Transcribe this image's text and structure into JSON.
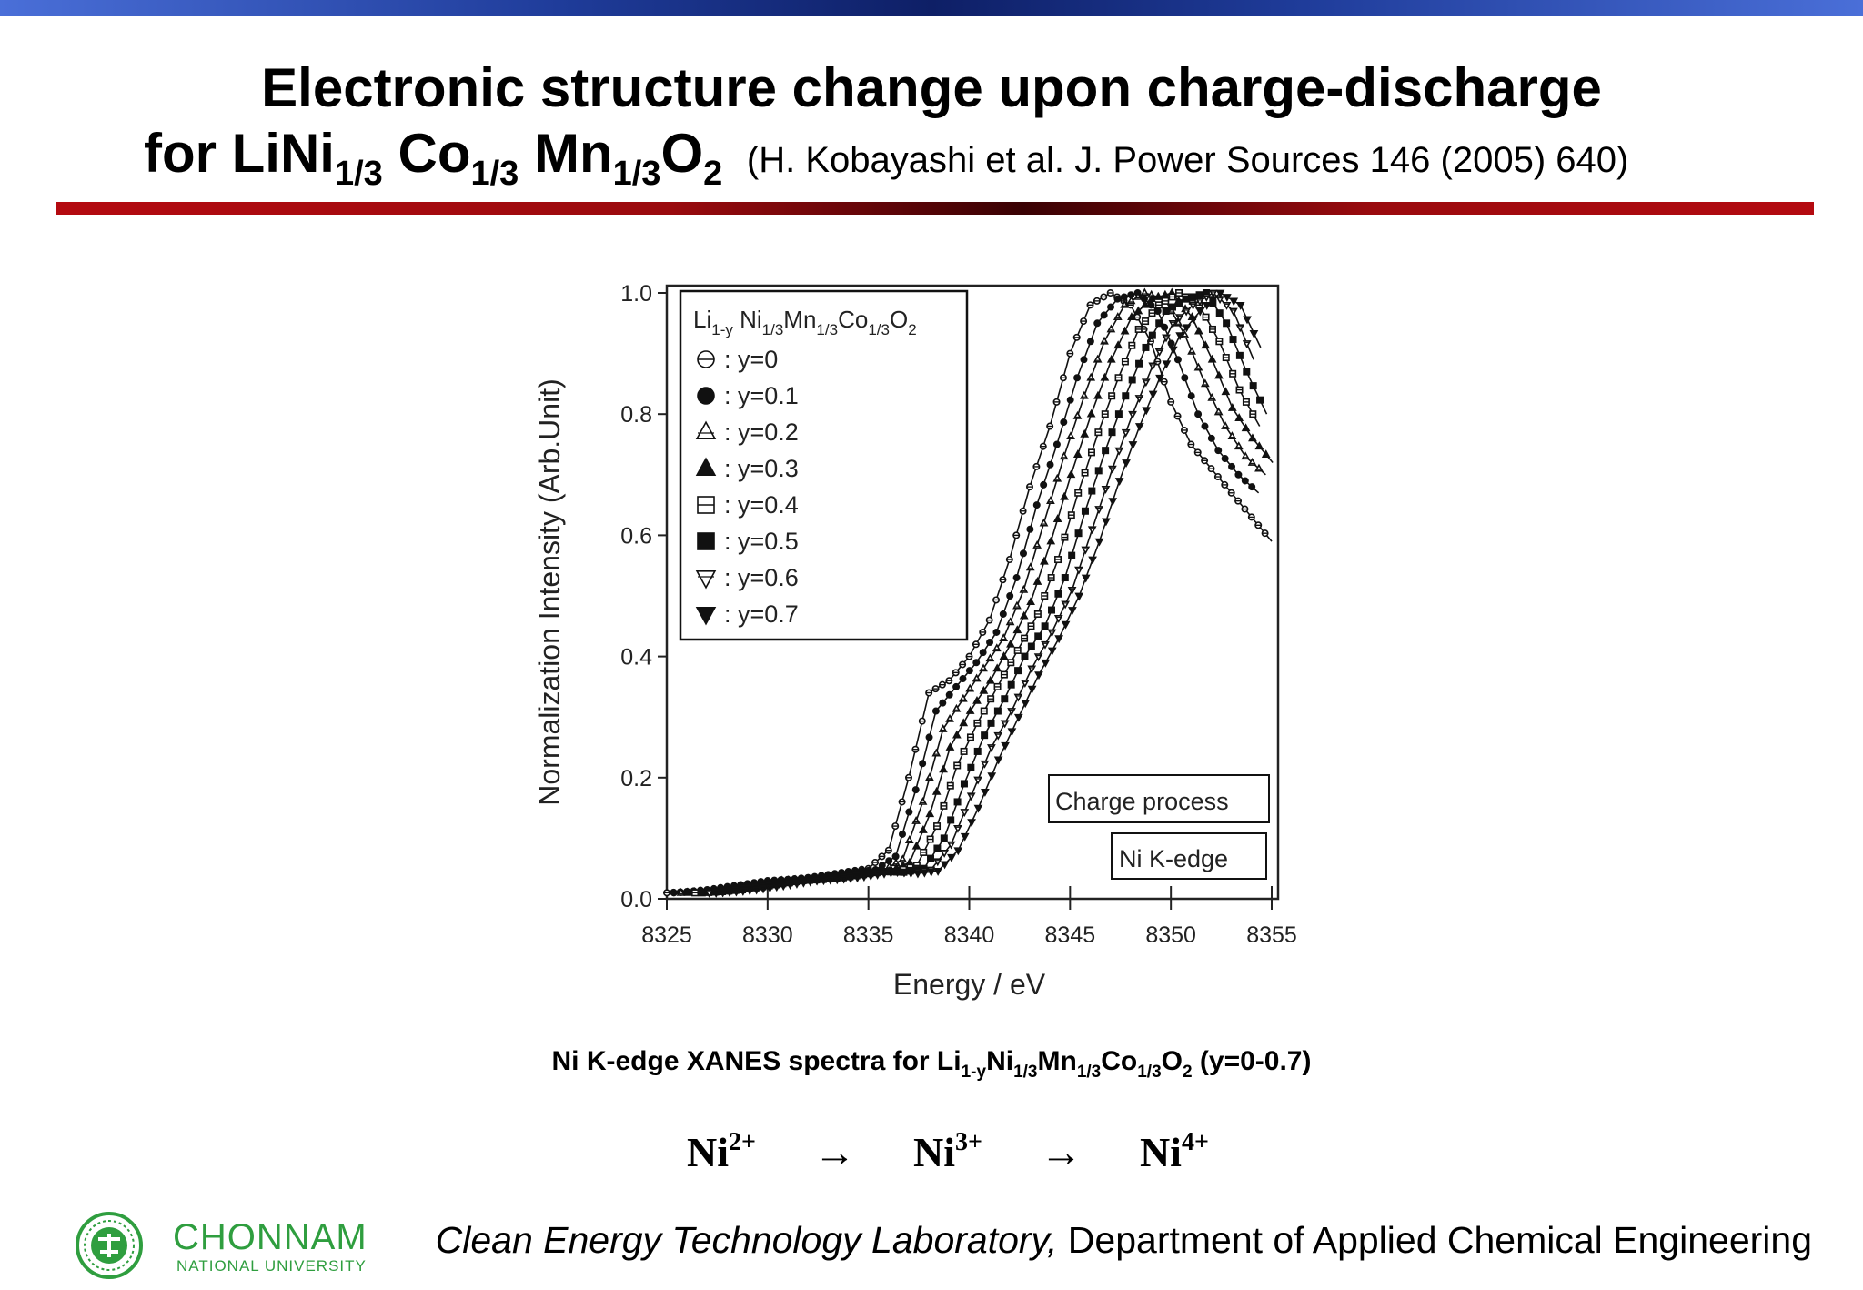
{
  "slide": {
    "title_line1": "Electronic structure change upon charge-discharge",
    "title_line2": {
      "parts": [
        "for LiNi",
        "1/3",
        " Co",
        "1/3",
        " Mn",
        "1/3",
        "O",
        "2"
      ],
      "reference": "(H. Kobayashi et al. J. Power Sources 146 (2005) 640)"
    },
    "caption": {
      "parts": [
        "Ni K-edge XANES spectra for Li",
        "1-y",
        "Ni",
        "1/3",
        "Mn",
        "1/3",
        "Co",
        "1/3",
        "O",
        "2",
        " (y=0-0.7)"
      ]
    },
    "oxidation": {
      "ions": [
        {
          "symbol": "Ni",
          "charge": "2+"
        },
        {
          "symbol": "Ni",
          "charge": "3+"
        },
        {
          "symbol": "Ni",
          "charge": "4+"
        }
      ],
      "arrow": "→"
    },
    "footer": {
      "university": "CHONNAM",
      "university_sub": "NATIONAL UNIVERSITY",
      "lab_italic": "Clean Energy Technology Laboratory,",
      "lab_rest": " Department of Applied Chemical Engineering"
    },
    "colors": {
      "top_bar": "#1f3c9a",
      "red_rule": "#b40a10",
      "logo_green": "#2f9e3f"
    }
  },
  "chart_data": {
    "type": "line",
    "xlabel": "Energy / eV",
    "ylabel": "Normalization Intensity (Arb.Unit)",
    "xlim": [
      8325,
      8355
    ],
    "ylim": [
      0.0,
      1.0
    ],
    "xticks": [
      "8325",
      "8330",
      "8335",
      "8340",
      "8345",
      "8350",
      "8355"
    ],
    "yticks": [
      "0.0",
      "0.2",
      "0.4",
      "0.6",
      "0.8",
      "1.0"
    ],
    "legend": {
      "title_parts": [
        "Li",
        "1-y",
        " Ni",
        "1/3",
        "Mn",
        "1/3",
        "Co",
        "1/3",
        "O",
        "2"
      ],
      "position": "top-left"
    },
    "annotations": [
      "Charge process",
      "Ni K-edge"
    ],
    "grid": false,
    "series": [
      {
        "name": "y=0",
        "marker": "circle-open",
        "shift": 0.0,
        "x": [
          8325,
          8326,
          8327,
          8328,
          8329,
          8330,
          8331,
          8332,
          8333,
          8334,
          8335,
          8336,
          8337,
          8338,
          8339,
          8340,
          8341,
          8342,
          8343,
          8344,
          8345,
          8346,
          8347,
          8348,
          8349,
          8350,
          8351,
          8352,
          8353,
          8354,
          8355
        ],
        "y": [
          0.01,
          0.012,
          0.015,
          0.02,
          0.025,
          0.03,
          0.032,
          0.035,
          0.04,
          0.045,
          0.05,
          0.08,
          0.2,
          0.34,
          0.36,
          0.4,
          0.46,
          0.56,
          0.68,
          0.78,
          0.9,
          0.98,
          1.0,
          0.98,
          0.92,
          0.82,
          0.75,
          0.71,
          0.67,
          0.63,
          0.59
        ]
      },
      {
        "name": "y=0.1",
        "marker": "circle-filled",
        "shift": 0.35,
        "x": [
          8325,
          8326,
          8327,
          8328,
          8329,
          8330,
          8331,
          8332,
          8333,
          8334,
          8335,
          8336,
          8337,
          8338,
          8339,
          8340,
          8341,
          8342,
          8343,
          8344,
          8345,
          8346,
          8347,
          8348,
          8349,
          8350,
          8351,
          8352,
          8353,
          8354,
          8355
        ],
        "y": [
          0.01,
          0.012,
          0.015,
          0.02,
          0.025,
          0.03,
          0.032,
          0.035,
          0.04,
          0.045,
          0.048,
          0.07,
          0.18,
          0.31,
          0.35,
          0.39,
          0.44,
          0.53,
          0.65,
          0.75,
          0.86,
          0.95,
          0.99,
          1.0,
          0.97,
          0.89,
          0.8,
          0.74,
          0.7,
          0.67,
          0.63
        ]
      },
      {
        "name": "y=0.2",
        "marker": "triangle-up-open",
        "shift": 0.7,
        "x": [
          8325,
          8326,
          8327,
          8328,
          8329,
          8330,
          8331,
          8332,
          8333,
          8334,
          8335,
          8336,
          8337,
          8338,
          8339,
          8340,
          8341,
          8342,
          8343,
          8344,
          8345,
          8346,
          8347,
          8348,
          8349,
          8350,
          8351,
          8352,
          8353,
          8354,
          8355
        ],
        "y": [
          0.01,
          0.012,
          0.015,
          0.02,
          0.025,
          0.03,
          0.032,
          0.035,
          0.04,
          0.045,
          0.047,
          0.065,
          0.16,
          0.28,
          0.33,
          0.38,
          0.43,
          0.51,
          0.62,
          0.73,
          0.83,
          0.92,
          0.98,
          1.0,
          0.99,
          0.93,
          0.85,
          0.78,
          0.73,
          0.7,
          0.66
        ]
      },
      {
        "name": "y=0.3",
        "marker": "triangle-up-filled",
        "shift": 1.05,
        "x": [
          8325,
          8326,
          8327,
          8328,
          8329,
          8330,
          8331,
          8332,
          8333,
          8334,
          8335,
          8336,
          8337,
          8338,
          8339,
          8340,
          8341,
          8342,
          8343,
          8344,
          8345,
          8346,
          8347,
          8348,
          8349,
          8350,
          8351,
          8352,
          8353,
          8354,
          8355
        ],
        "y": [
          0.01,
          0.012,
          0.015,
          0.02,
          0.025,
          0.03,
          0.032,
          0.035,
          0.04,
          0.045,
          0.046,
          0.06,
          0.14,
          0.25,
          0.31,
          0.36,
          0.42,
          0.49,
          0.59,
          0.7,
          0.8,
          0.89,
          0.96,
          0.99,
          1.0,
          0.96,
          0.89,
          0.81,
          0.76,
          0.72,
          0.68
        ]
      },
      {
        "name": "y=0.4",
        "marker": "square-open",
        "shift": 1.4,
        "x": [
          8325,
          8326,
          8327,
          8328,
          8329,
          8330,
          8331,
          8332,
          8333,
          8334,
          8335,
          8336,
          8337,
          8338,
          8339,
          8340,
          8341,
          8342,
          8343,
          8344,
          8345,
          8346,
          8347,
          8348,
          8349,
          8350,
          8351,
          8352,
          8353,
          8354,
          8355
        ],
        "y": [
          0.01,
          0.012,
          0.015,
          0.02,
          0.025,
          0.03,
          0.032,
          0.035,
          0.04,
          0.045,
          0.045,
          0.055,
          0.12,
          0.22,
          0.29,
          0.35,
          0.41,
          0.47,
          0.56,
          0.67,
          0.77,
          0.86,
          0.94,
          0.98,
          1.0,
          0.98,
          0.92,
          0.84,
          0.78,
          0.74,
          0.7
        ]
      },
      {
        "name": "y=0.5",
        "marker": "square-filled",
        "shift": 1.75,
        "x": [
          8325,
          8326,
          8327,
          8328,
          8329,
          8330,
          8331,
          8332,
          8333,
          8334,
          8335,
          8336,
          8337,
          8338,
          8339,
          8340,
          8341,
          8342,
          8343,
          8344,
          8345,
          8346,
          8347,
          8348,
          8349,
          8350,
          8351,
          8352,
          8353,
          8354,
          8355
        ],
        "y": [
          0.01,
          0.012,
          0.015,
          0.02,
          0.025,
          0.03,
          0.032,
          0.035,
          0.04,
          0.045,
          0.044,
          0.05,
          0.1,
          0.19,
          0.27,
          0.33,
          0.4,
          0.45,
          0.53,
          0.64,
          0.74,
          0.83,
          0.91,
          0.97,
          0.99,
          1.0,
          0.95,
          0.87,
          0.8,
          0.75,
          0.71
        ]
      },
      {
        "name": "y=0.6",
        "marker": "triangle-down-open",
        "shift": 2.1,
        "x": [
          8325,
          8326,
          8327,
          8328,
          8329,
          8330,
          8331,
          8332,
          8333,
          8334,
          8335,
          8336,
          8337,
          8338,
          8339,
          8340,
          8341,
          8342,
          8343,
          8344,
          8345,
          8346,
          8347,
          8348,
          8349,
          8350,
          8351,
          8352,
          8353,
          8354,
          8355
        ],
        "y": [
          0.01,
          0.012,
          0.015,
          0.02,
          0.025,
          0.03,
          0.032,
          0.035,
          0.04,
          0.045,
          0.043,
          0.048,
          0.09,
          0.17,
          0.25,
          0.31,
          0.38,
          0.44,
          0.51,
          0.61,
          0.71,
          0.8,
          0.88,
          0.95,
          0.98,
          1.0,
          0.97,
          0.89,
          0.82,
          0.76,
          0.72
        ]
      },
      {
        "name": "y=0.7",
        "marker": "triangle-down-filled",
        "shift": 2.45,
        "x": [
          8325,
          8326,
          8327,
          8328,
          8329,
          8330,
          8331,
          8332,
          8333,
          8334,
          8335,
          8336,
          8337,
          8338,
          8339,
          8340,
          8341,
          8342,
          8343,
          8344,
          8345,
          8346,
          8347,
          8348,
          8349,
          8350,
          8351,
          8352,
          8353,
          8354,
          8355
        ],
        "y": [
          0.01,
          0.012,
          0.015,
          0.02,
          0.025,
          0.03,
          0.032,
          0.035,
          0.04,
          0.045,
          0.042,
          0.046,
          0.08,
          0.15,
          0.23,
          0.3,
          0.37,
          0.43,
          0.5,
          0.59,
          0.69,
          0.78,
          0.86,
          0.93,
          0.97,
          1.0,
          0.98,
          0.91,
          0.84,
          0.77,
          0.71
        ]
      }
    ]
  }
}
